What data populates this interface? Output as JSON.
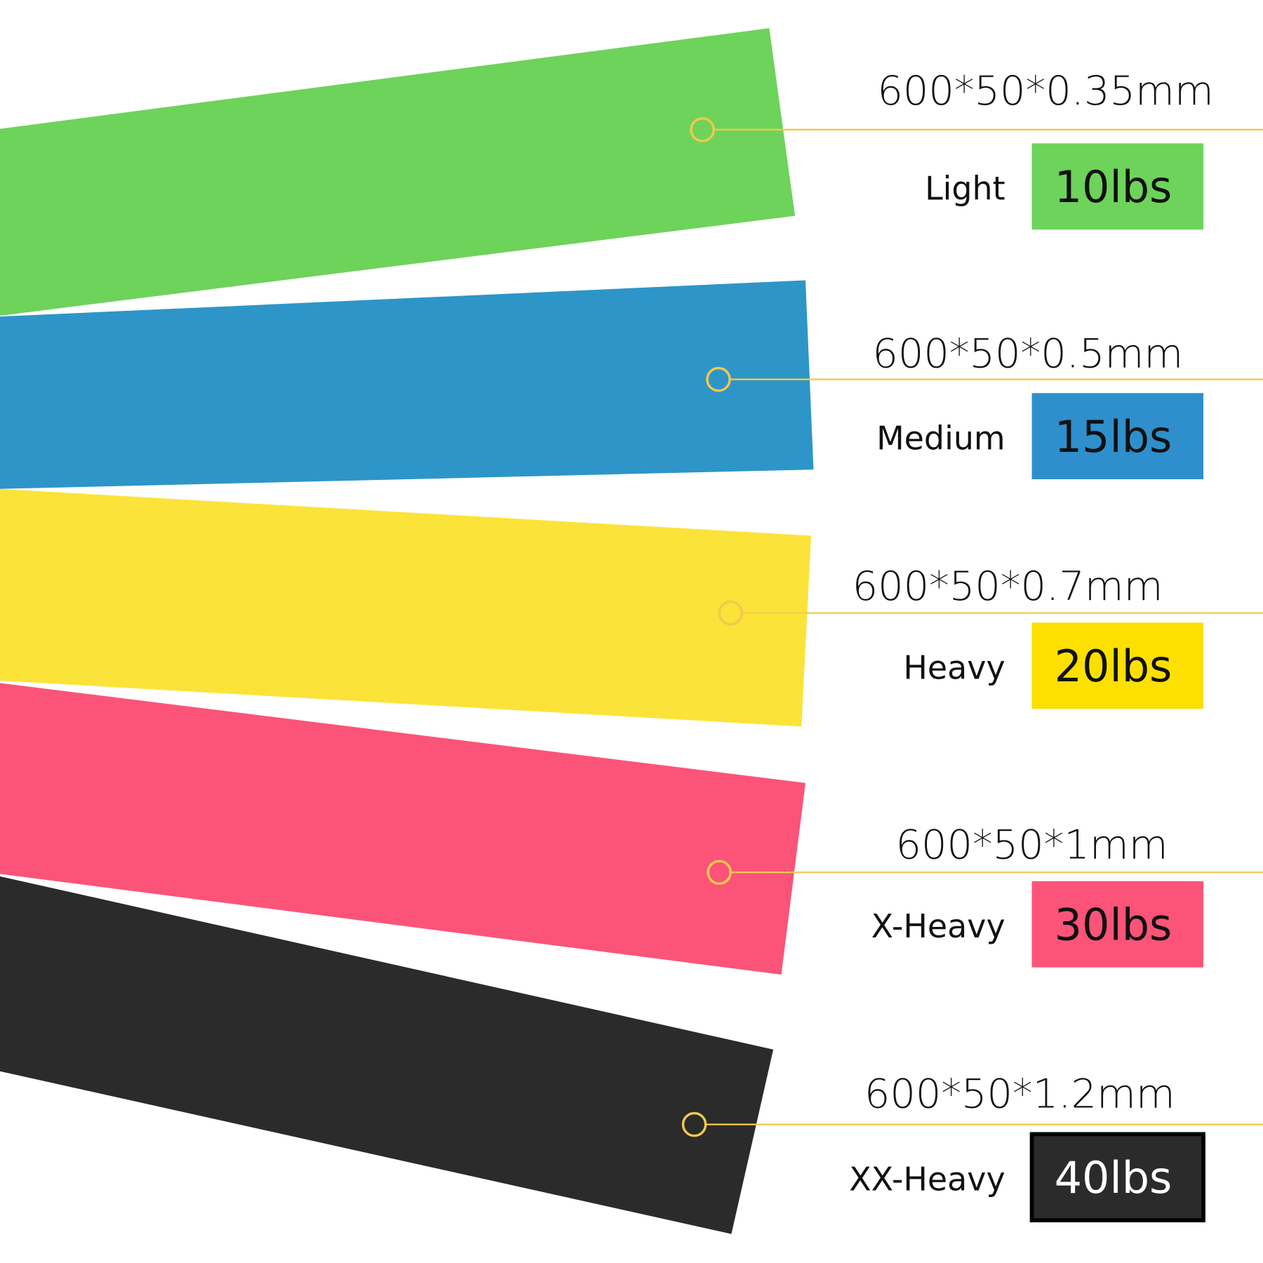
{
  "accent_line_color": "#f2c94c",
  "bands": [
    {
      "dimension": "600*50*0.35mm",
      "level": "Light",
      "resistance": "10lbs",
      "color": "#6dd35a",
      "box_color": "#6dd35a",
      "text_color": "#111111"
    },
    {
      "dimension": "600*50*0.5mm",
      "level": "Medium",
      "resistance": "15lbs",
      "color": "#2e95c8",
      "box_color": "#2e8fcc",
      "text_color": "#111111"
    },
    {
      "dimension": "600*50*0.7mm",
      "level": "Heavy",
      "resistance": "20lbs",
      "color": "#fbe33a",
      "box_color": "#fde000",
      "text_color": "#111111"
    },
    {
      "dimension": "600*50*1mm",
      "level": "X-Heavy",
      "resistance": "30lbs",
      "color": "#fb5478",
      "box_color": "#fb5478",
      "text_color": "#111111"
    },
    {
      "dimension": "600*50*1.2mm",
      "level": "XX-Heavy",
      "resistance": "40lbs",
      "color": "#2b2b2b",
      "box_color": "#2b2b2b",
      "text_color": "#ffffff"
    }
  ]
}
